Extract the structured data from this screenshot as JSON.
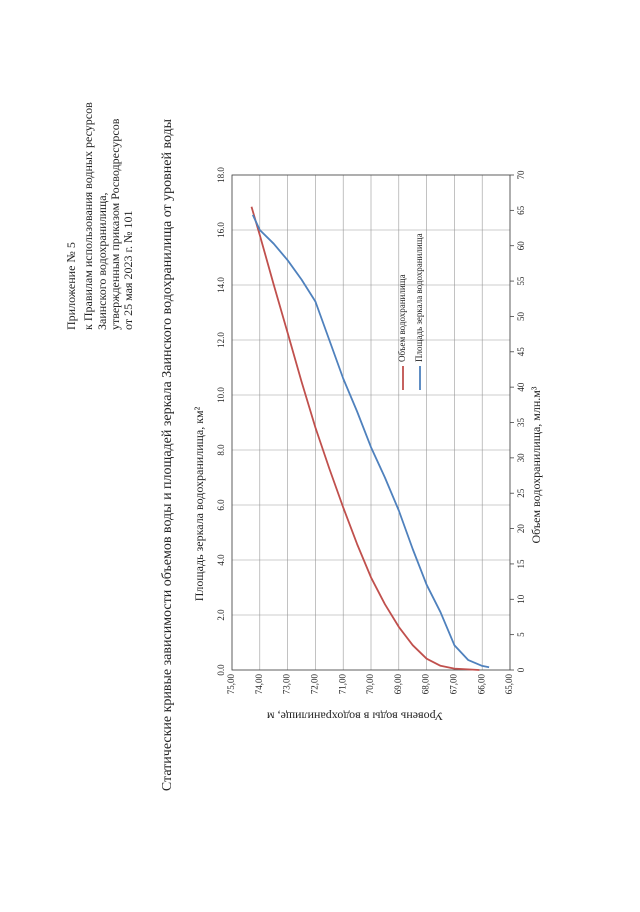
{
  "header": {
    "lines": [
      "Приложение № 5",
      "к Правилам использования водных ресурсов",
      "Заинского водохранилища,",
      "утвержденным приказом Росводресурсов",
      "от 25 мая 2023 г. № 101"
    ]
  },
  "chart_data": {
    "type": "line",
    "title": "Статические кривые зависимости объемов воды и площадей зеркала Заинского водохранилища от уровней воды",
    "xlabel": "Площадь зеркала водохранилища, км²",
    "x2label": "Объем водохранилища, млн.м³",
    "ylabel": "Уровень воды в водохранилище, м",
    "xlim": [
      0,
      18
    ],
    "xticks": [
      {
        "value": 0,
        "label": "0.0"
      },
      {
        "value": 2,
        "label": "2.0"
      },
      {
        "value": 4,
        "label": "4.0"
      },
      {
        "value": 6,
        "label": "6.0"
      },
      {
        "value": 8,
        "label": "8.0"
      },
      {
        "value": 10,
        "label": "10.0"
      },
      {
        "value": 12,
        "label": "12.0"
      },
      {
        "value": 14,
        "label": "14.0"
      },
      {
        "value": 16,
        "label": "16.0"
      },
      {
        "value": 18,
        "label": "18.0"
      }
    ],
    "x2lim": [
      0,
      70
    ],
    "x2ticks": [
      0,
      5,
      10,
      15,
      20,
      25,
      30,
      35,
      40,
      45,
      50,
      55,
      60,
      65,
      70
    ],
    "ylim": [
      65,
      75
    ],
    "yticks": [
      {
        "value": 65,
        "label": "65,00"
      },
      {
        "value": 66,
        "label": "66,00"
      },
      {
        "value": 67,
        "label": "67,00"
      },
      {
        "value": 68,
        "label": "68,00"
      },
      {
        "value": 69,
        "label": "69,00"
      },
      {
        "value": 70,
        "label": "70,00"
      },
      {
        "value": 71,
        "label": "71,00"
      },
      {
        "value": 72,
        "label": "72,00"
      },
      {
        "value": 73,
        "label": "73,00"
      },
      {
        "value": 74,
        "label": "74,00"
      },
      {
        "value": 75,
        "label": "75,00"
      }
    ],
    "grid": true,
    "series": [
      {
        "name": "Объем водохранилища",
        "color": "#c0504d",
        "axis": "x2",
        "x": [
          0,
          0.2,
          0.6,
          1.6,
          3.5,
          6.1,
          9.3,
          13.1,
          17.8,
          23,
          28.5,
          34.3,
          40.8,
          47.7,
          54.5,
          61.5,
          65.5
        ],
        "values": [
          66.1,
          67,
          67.5,
          68,
          68.5,
          69,
          69.5,
          70,
          70.5,
          71,
          71.5,
          72,
          72.5,
          73,
          73.5,
          74,
          74.3
        ]
      },
      {
        "name": "Площадь зеркала водохранилища",
        "color": "#4f81bd",
        "x": [
          0.1,
          0.15,
          0.36,
          0.9,
          2.1,
          3.1,
          4.4,
          5.8,
          7,
          8.1,
          9.4,
          10.6,
          12,
          13.4,
          14.2,
          14.9,
          15.5,
          16,
          16.55
        ],
        "values": [
          65.75,
          66,
          66.5,
          67,
          67.5,
          68,
          68.5,
          69,
          69.5,
          70,
          70.5,
          71,
          71.5,
          72,
          72.5,
          73,
          73.5,
          74,
          74.25
        ]
      }
    ]
  }
}
